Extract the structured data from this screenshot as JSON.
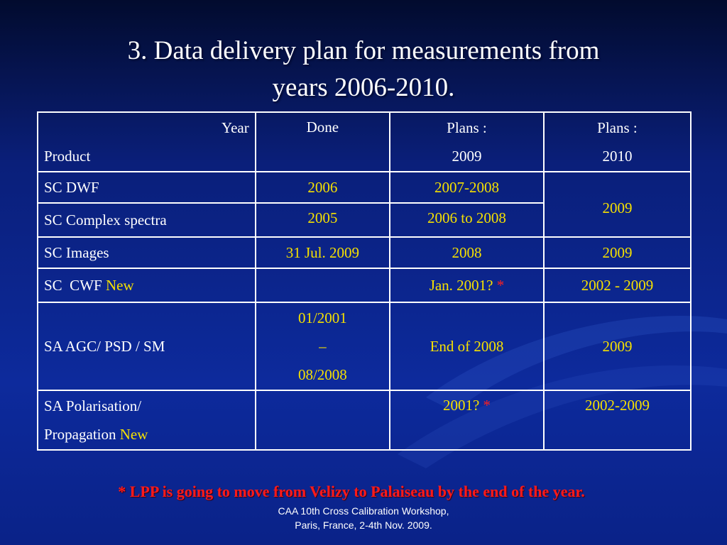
{
  "title": {
    "line1": "3. Data delivery plan for measurements from",
    "line2": "years 2006-2010."
  },
  "table": {
    "header": {
      "year": "Year",
      "product": "Product",
      "done": "Done",
      "plans2009_a": "Plans :",
      "plans2009_b": "2009",
      "plans2010_a": "Plans :",
      "plans2010_b": "2010"
    },
    "rows": [
      {
        "product": "SC DWF",
        "done": "2006",
        "plans2009": "2007-2008"
      },
      {
        "product": "SC Complex spectra",
        "done": "2005",
        "plans2009": "2006 to 2008",
        "plans2010_merged": "2009"
      },
      {
        "product": "SC Images",
        "done": "31 Jul. 2009",
        "plans2009": "2008",
        "plans2010": "2009"
      },
      {
        "product": "SC  CWF",
        "product_new": "New",
        "done": "",
        "plans2009": "Jan. 2001?",
        "plans2009_star": "*",
        "plans2010": "2002 - 2009"
      },
      {
        "product": "SA AGC/ PSD / SM",
        "done_a": "01/2001",
        "done_b": "–",
        "done_c": "08/2008",
        "plans2009": "End of 2008",
        "plans2010": "2009"
      },
      {
        "product_a": "SA Polarisation/",
        "product_b": "Propagation",
        "product_new": "New",
        "done": "",
        "plans2009": "2001?",
        "plans2009_star": "*",
        "plans2010": "2002-2009"
      }
    ]
  },
  "footnote": "* LPP is going to move from Velizy to Palaiseau by the end of  the year.",
  "footer": {
    "line1": "CAA 10th Cross Calibration Workshop,",
    "line2": "Paris, France, 2-4th Nov. 2009."
  },
  "colors": {
    "background": "#0d2a9c",
    "highlight": "#f5e000",
    "alert": "#ff2020",
    "text": "#ffffff"
  }
}
